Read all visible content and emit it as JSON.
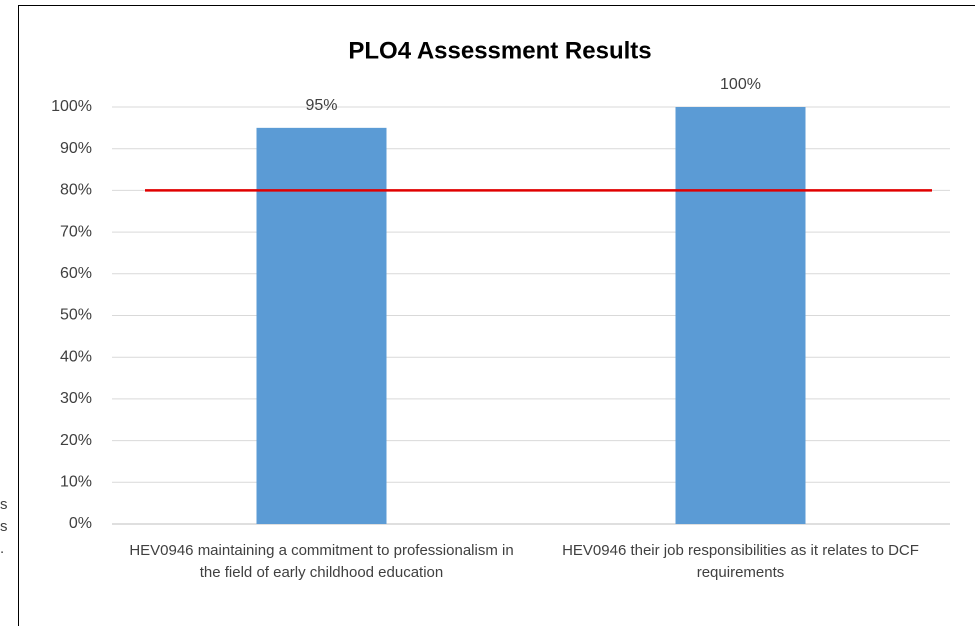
{
  "chart_data": {
    "type": "bar",
    "title": "PLO4 Assessment Results",
    "categories": [
      "HEV0946 maintaining a commitment to professionalism in the field of early childhood education",
      "HEV0946 their job responsibilities as it relates to DCF requirements"
    ],
    "values": [
      95,
      100
    ],
    "value_labels": [
      "95%",
      "100%"
    ],
    "color": "#5b9bd5",
    "target": 80,
    "target_color": "#e00000",
    "ylim": [
      0,
      100
    ],
    "yticks": [
      {
        "value": 0,
        "label": "0%"
      },
      {
        "value": 10,
        "label": "10%"
      },
      {
        "value": 20,
        "label": "20%"
      },
      {
        "value": 30,
        "label": "30%"
      },
      {
        "value": 40,
        "label": "40%"
      },
      {
        "value": 50,
        "label": "50%"
      },
      {
        "value": 60,
        "label": "60%"
      },
      {
        "value": 70,
        "label": "70%"
      },
      {
        "value": 80,
        "label": "80%"
      },
      {
        "value": 90,
        "label": "90%"
      },
      {
        "value": 100,
        "label": "100%"
      }
    ],
    "grid": true
  },
  "fragments": [
    "s",
    "s",
    "."
  ]
}
